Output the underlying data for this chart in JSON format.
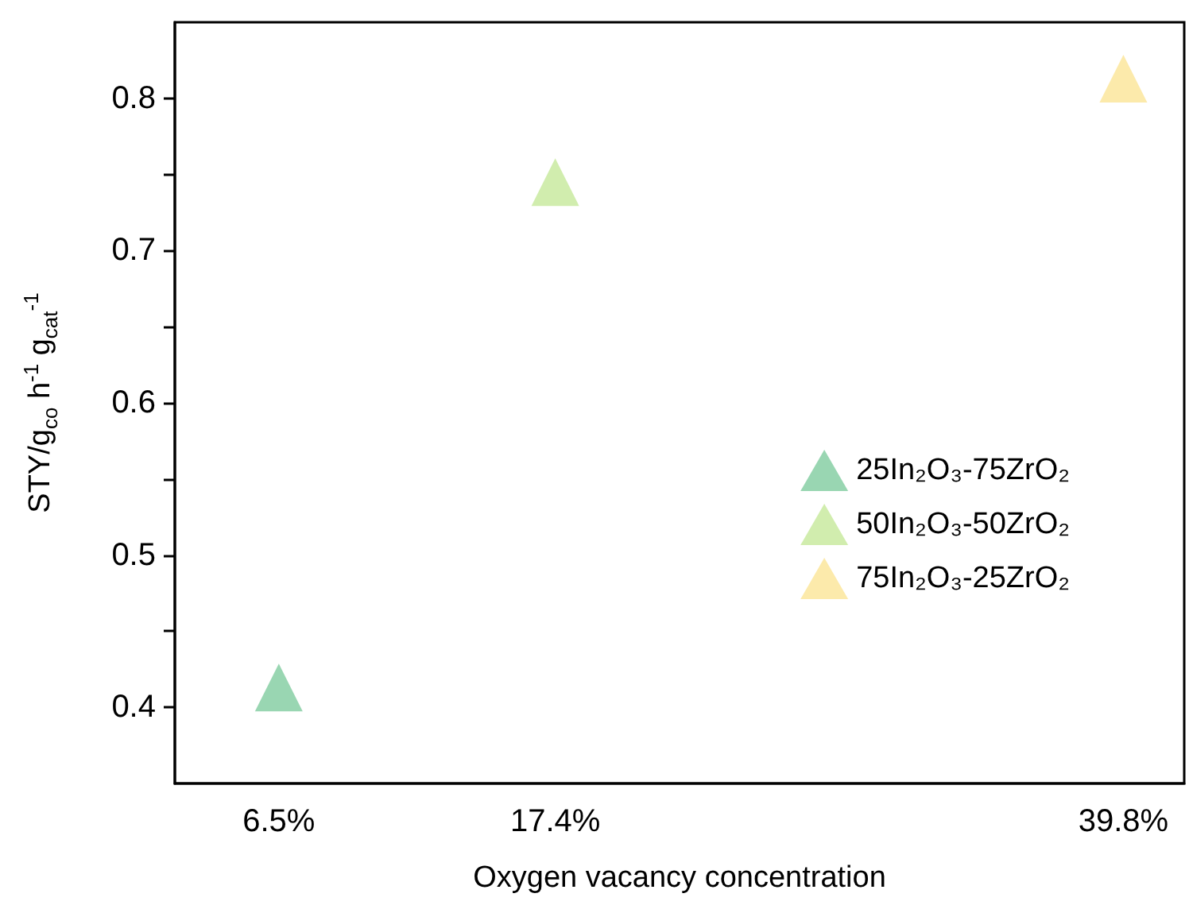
{
  "chart_data": {
    "type": "scatter",
    "xlabel": "Oxygen vacancy concentration",
    "ylabel": "STY/g$_{co}$ h$^{-1}$ g$_{cat}$$^{-1}$",
    "xlim": [
      2.4,
      42.2
    ],
    "xticks": [
      {
        "value": 6.5,
        "label": "6.5%"
      },
      {
        "value": 17.4,
        "label": "17.4%"
      },
      {
        "value": 39.8,
        "label": "39.8%"
      }
    ],
    "ylim": [
      0.35,
      0.85
    ],
    "yticks": [
      0.4,
      {
        "value": 0.45,
        "label": null
      },
      0.5,
      {
        "value": 0.55,
        "label": null
      },
      0.6,
      {
        "value": 0.65,
        "label": null
      },
      0.7,
      {
        "value": 0.75,
        "label": null
      },
      0.8
    ],
    "marker": "triangle",
    "legend": "right",
    "grid": false,
    "series": [
      {
        "name": "25In₂O₃-75ZrO₂",
        "color": "#7fcc9f",
        "x": [
          6.5
        ],
        "values": [
          0.413
        ]
      },
      {
        "name": "50In₂O₃-50ZrO₂",
        "color": "#c6e89a",
        "x": [
          17.4
        ],
        "values": [
          0.745
        ]
      },
      {
        "name": "75In₂O₃-25ZrO₂",
        "color": "#fbe596",
        "x": [
          39.8
        ],
        "values": [
          0.813
        ]
      }
    ]
  }
}
